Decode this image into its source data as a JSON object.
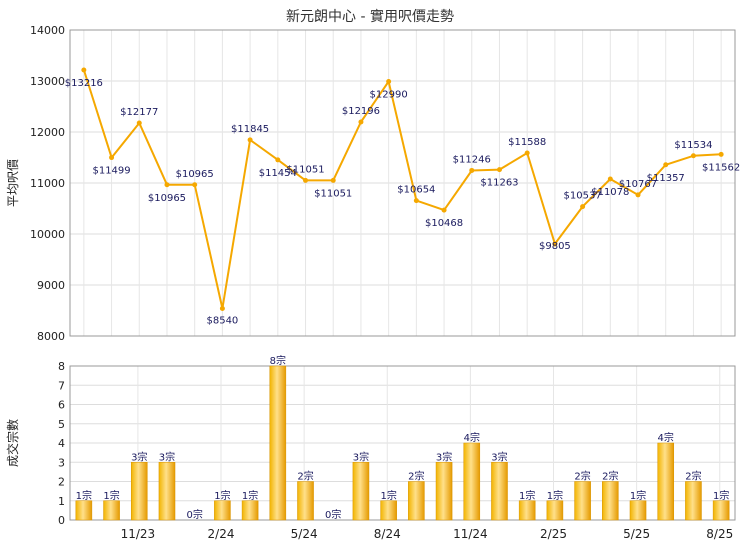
{
  "page": {
    "title": "新元朗中心 - 實用呎價走勢"
  },
  "chart_data": [
    {
      "type": "line",
      "title": "新元朗中心 - 實用呎價走勢",
      "ylabel": "平均呎價",
      "xlabel": "",
      "ylim": [
        8000,
        14000
      ],
      "yticks": [
        "8000",
        "9000",
        "10000",
        "11000",
        "12000",
        "13000",
        "14000"
      ],
      "grid": true,
      "color": "#f5a800",
      "series": [
        {
          "values": [
            13216,
            11499,
            12177,
            10965,
            10965,
            8540,
            11845,
            11454,
            11051,
            11051,
            12196,
            12990,
            10654,
            10468,
            11246,
            11263,
            11588,
            9805,
            10537,
            11078,
            10767,
            11357,
            11534,
            11562
          ],
          "labels": [
            "$13216",
            "$11499",
            "$12177",
            "$10965",
            "$10965",
            "$8540",
            "$11845",
            "$11454",
            "$11051",
            "$11051",
            "$12196",
            "$12990",
            "$10654",
            "$10468",
            "$11246",
            "$11263",
            "$11588",
            "$9805",
            "$10537",
            "$11078",
            "$10767",
            "$11357",
            "$11534",
            "$11562"
          ]
        }
      ]
    },
    {
      "type": "bar",
      "ylabel": "成交宗數",
      "xlabel": "",
      "ylim": [
        0,
        8
      ],
      "yticks": [
        "0",
        "1",
        "2",
        "3",
        "4",
        "5",
        "6",
        "7",
        "8"
      ],
      "grid": true,
      "color": "#f5a800",
      "xtick_labels": [
        "11/23",
        "2/24",
        "5/24",
        "8/24",
        "11/24",
        "2/25",
        "5/25",
        "8/25"
      ],
      "values": [
        1,
        1,
        3,
        3,
        0,
        1,
        1,
        8,
        2,
        0,
        3,
        1,
        2,
        3,
        4,
        3,
        1,
        1,
        2,
        2,
        1,
        4,
        2,
        1
      ],
      "labels": [
        "1宗",
        "1宗",
        "3宗",
        "3宗",
        "0宗",
        "1宗",
        "1宗",
        "8宗",
        "2宗",
        "0宗",
        "3宗",
        "1宗",
        "2宗",
        "3宗",
        "4宗",
        "3宗",
        "1宗",
        "1宗",
        "2宗",
        "2宗",
        "1宗",
        "4宗",
        "2宗",
        "1宗"
      ]
    }
  ]
}
